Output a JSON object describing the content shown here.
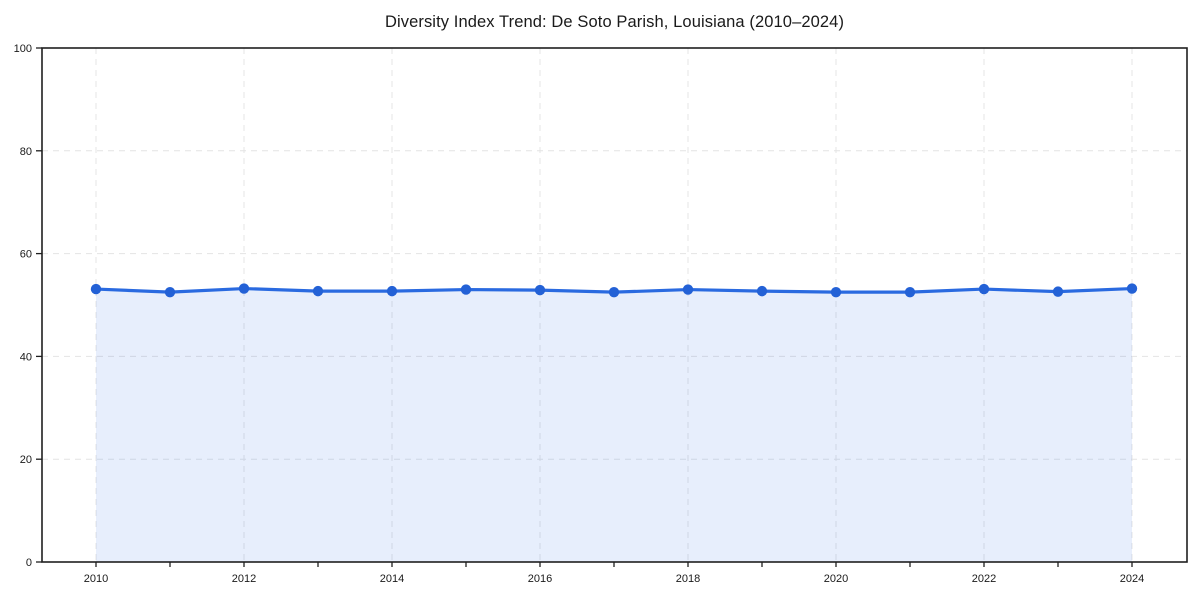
{
  "chart_data": {
    "type": "area",
    "title": "Diversity Index Trend: De Soto Parish, Louisiana (2010–2024)",
    "xlabel": "",
    "ylabel": "",
    "x": [
      2010,
      2011,
      2012,
      2013,
      2014,
      2015,
      2016,
      2017,
      2018,
      2019,
      2020,
      2021,
      2022,
      2023,
      2024
    ],
    "series": [
      {
        "name": "Diversity Index",
        "values": [
          53.1,
          52.5,
          53.2,
          52.7,
          52.7,
          53.0,
          52.9,
          52.5,
          53.0,
          52.7,
          52.5,
          52.5,
          53.1,
          52.6,
          53.2
        ]
      }
    ],
    "ylim": [
      0,
      100
    ],
    "yticks": [
      0,
      20,
      40,
      60,
      80,
      100
    ],
    "xticks_major": [
      2010,
      2012,
      2014,
      2016,
      2018,
      2020,
      2022,
      2024
    ],
    "grid": true,
    "grid_style": "dashed",
    "legend": "none",
    "colors": {
      "line": "#2a6ae0",
      "marker": "#2361d6",
      "fill": "#3b76e6",
      "fill_opacity": "0.12",
      "grid": "#e4e4e4",
      "frame": "#1f1f1f",
      "text": "#1a1a1a",
      "background": "#ffffff"
    }
  }
}
